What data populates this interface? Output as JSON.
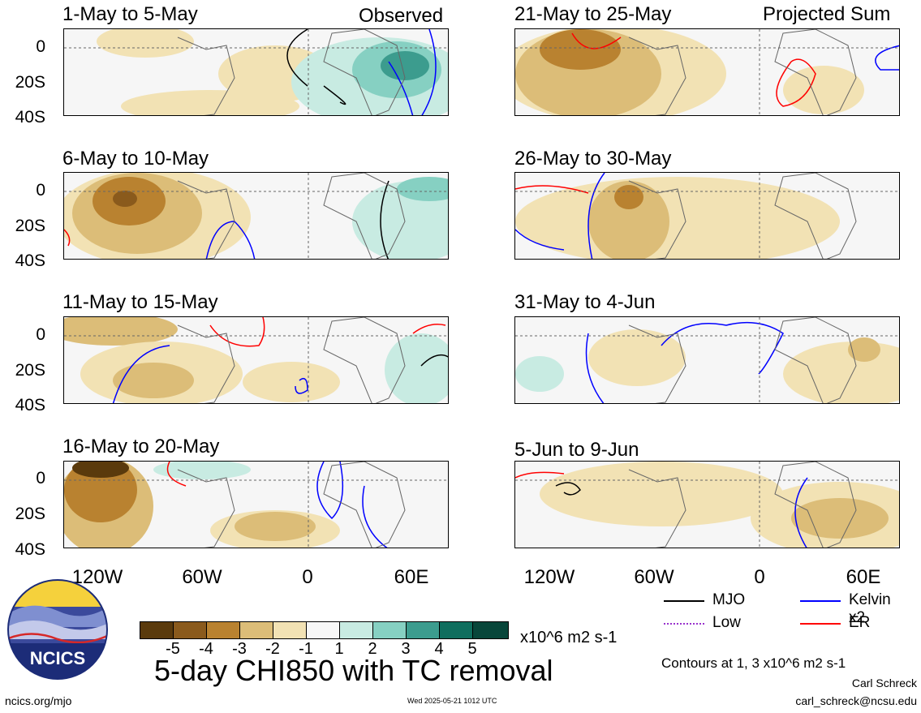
{
  "header": {
    "observed_label": "Observed",
    "projected_label": "Projected Sum"
  },
  "panels": [
    {
      "title": "1-May to 5-May"
    },
    {
      "title": "21-May to 25-May"
    },
    {
      "title": "6-May to 10-May"
    },
    {
      "title": "26-May to 30-May"
    },
    {
      "title": "11-May to 15-May"
    },
    {
      "title": "31-May to 4-Jun"
    },
    {
      "title": "16-May to 20-May"
    },
    {
      "title": "5-Jun to 9-Jun"
    }
  ],
  "axes": {
    "y_ticks": [
      "0",
      "20S",
      "40S"
    ],
    "x_ticks": [
      "120W",
      "60W",
      "0",
      "60E"
    ]
  },
  "colorbar": {
    "colors": [
      "#5a3a0c",
      "#8a5a1c",
      "#b98230",
      "#dcbd78",
      "#f2e2b4",
      "#f7f7f7",
      "#c8ebe2",
      "#86d0c2",
      "#3c9c8e",
      "#0f6e5e",
      "#08463a"
    ],
    "tick_labels": [
      "-5",
      "-4",
      "-3",
      "-2",
      "-1",
      "1",
      "2",
      "3",
      "4",
      "5"
    ],
    "units": "x10^6 m2 s-1"
  },
  "title": "5-day CHI850 with TC removal",
  "legend": {
    "items": [
      {
        "label": "MJO",
        "color": "#000000"
      },
      {
        "label": "Kelvin x2",
        "color": "#0000ff"
      },
      {
        "label": "Low",
        "color": "#9932cc"
      },
      {
        "label": "ER",
        "color": "#ff0000"
      }
    ],
    "contour_note": "Contours at 1, 3 x10^6 m2 s-1"
  },
  "logo": {
    "text": "NCICS"
  },
  "footer": {
    "website": "ncics.org/mjo",
    "timestamp": "Wed 2025-05-21 1012 UTC",
    "author": "Carl Schreck",
    "email": "carl_schreck@ncsu.edu"
  }
}
